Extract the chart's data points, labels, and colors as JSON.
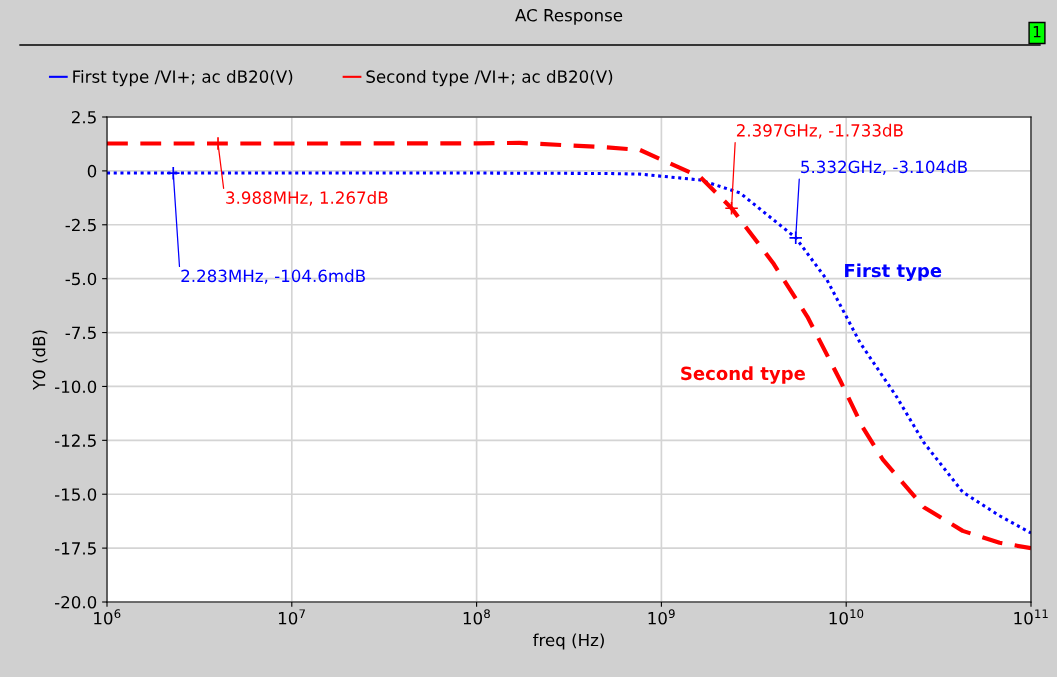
{
  "chart_data": {
    "type": "line",
    "title": "AC Response",
    "xlabel": "freq (Hz)",
    "ylabel": "Y0 (dB)",
    "log": "x",
    "grid": true,
    "legend": "top left",
    "xlim": [
      1000000,
      100000000000
    ],
    "xticks": [
      {
        "value": 1000000,
        "label": "10$^{6}$"
      },
      {
        "value": 10000000,
        "label": "10$^{7}$"
      },
      {
        "value": 100000000,
        "label": "10$^{8}$"
      },
      {
        "value": 1000000000,
        "label": "10$^{9}$"
      },
      {
        "value": 10000000000,
        "label": "10$^{10}$"
      },
      {
        "value": 100000000000,
        "label": "10$^{11}$"
      }
    ],
    "ylim": [
      -20,
      2.5
    ],
    "yticks": [
      {
        "value": -20,
        "label": "-20.0"
      },
      -17.5,
      {
        "value": -15,
        "label": "-15.0"
      },
      -12.5,
      {
        "value": -10,
        "label": "-10.0"
      },
      -7.5,
      {
        "value": -5,
        "label": "-5.0"
      },
      -2.5,
      0,
      2.5
    ],
    "series": [
      {
        "name": "First type /VI+; ac dB20(V)",
        "color": "#0000ff",
        "line_style": "dotted",
        "x": [
          1000000,
          10000000,
          100000000,
          500000000,
          766000000,
          1620000000,
          2660000000,
          5332000000,
          7870000000,
          11900000000,
          18800000000,
          26300000000,
          42700000000,
          67600000000,
          100000000000
        ],
        "values": [
          -0.1,
          -0.1,
          -0.1,
          -0.12,
          -0.15,
          -0.42,
          -1.02,
          -3.1,
          -5.06,
          -7.98,
          -10.5,
          -12.6,
          -14.9,
          -16.0,
          -16.8
        ]
      },
      {
        "name": "Second type /VI+; ac dB20(V)",
        "color": "#ff0000",
        "line_style": "dashed",
        "x": [
          1000000,
          10000000,
          100000000,
          170000000,
          470000000,
          766000000,
          1620000000,
          2397000000,
          4020000000,
          6170000000,
          9250000000,
          12300000000,
          15800000000,
          26300000000,
          42700000000,
          67600000000,
          100000000000
        ],
        "values": [
          1.27,
          1.27,
          1.28,
          1.3,
          1.11,
          0.97,
          -0.28,
          -1.73,
          -4.27,
          -6.77,
          -9.7,
          -11.9,
          -13.4,
          -15.6,
          -16.7,
          -17.25,
          -17.5
        ]
      }
    ],
    "annotations": [
      {
        "text": "3.988MHz, 1.267dB",
        "x": 3988000,
        "y": 1.267
      },
      {
        "text": "2.283MHz, -104.6mdB",
        "x": 2283000,
        "y": -0.1046
      },
      {
        "text": "2.397GHz, -1.733dB",
        "x": 2397000000,
        "y": -1.733
      },
      {
        "text": "5.332GHz, -3.104dB",
        "x": 5332000000,
        "y": -3.104
      },
      "First type",
      "Second type",
      "1"
    ]
  }
}
